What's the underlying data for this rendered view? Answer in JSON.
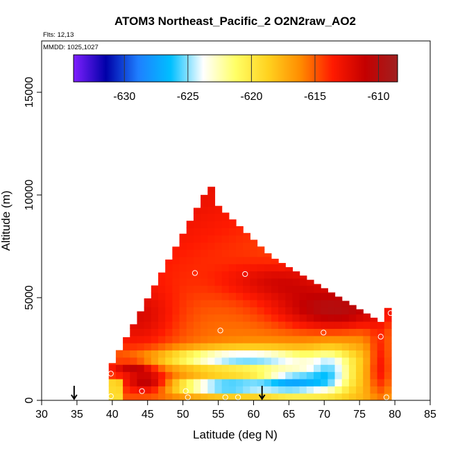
{
  "chart_data": {
    "type": "heatmap",
    "title": "ATOM3 Northeast_Pacific_2 O2N2raw_AO2",
    "flights_label": "Flts: 12,13",
    "dates_label": "MMDD: 1025,1027",
    "xlabel": "Latitude (deg N)",
    "ylabel": "Altitude (m)",
    "xlim": [
      30,
      85
    ],
    "ylim": [
      0,
      17500
    ],
    "x_ticks": [
      "30",
      "35",
      "40",
      "45",
      "50",
      "55",
      "60",
      "65",
      "70",
      "75",
      "80",
      "85"
    ],
    "x_tick_values": [
      30,
      35,
      40,
      45,
      50,
      55,
      60,
      65,
      70,
      75,
      80,
      85
    ],
    "y_ticks": [
      "0",
      "5000",
      "10000",
      "15000"
    ],
    "y_tick_values": [
      0,
      5000,
      10000,
      15000
    ],
    "colorbar": {
      "range": [
        -634,
        -608.5
      ],
      "tick_labels": [
        "-630",
        "-625",
        "-620",
        "-615",
        "-610"
      ],
      "tick_values": [
        -630,
        -625,
        -620,
        -615,
        -610
      ],
      "colors": [
        "#7f1fff",
        "#0000a8",
        "#1e7fff",
        "#00bfff",
        "#ffffff",
        "#ffff66",
        "#ffd21f",
        "#ff8c00",
        "#ff1a00",
        "#c40000",
        "#a02020"
      ]
    },
    "arrow_latitudes": [
      34.6,
      61.2
    ],
    "sample_points": [
      {
        "lat": 39.8,
        "alt": 1300
      },
      {
        "lat": 39.8,
        "alt": 200
      },
      {
        "lat": 44.2,
        "alt": 450
      },
      {
        "lat": 50.4,
        "alt": 450
      },
      {
        "lat": 50.7,
        "alt": 150
      },
      {
        "lat": 51.7,
        "alt": 6200
      },
      {
        "lat": 55.3,
        "alt": 3400
      },
      {
        "lat": 56.0,
        "alt": 150
      },
      {
        "lat": 57.8,
        "alt": 150
      },
      {
        "lat": 58.8,
        "alt": 6150
      },
      {
        "lat": 69.9,
        "alt": 3300
      },
      {
        "lat": 78.0,
        "alt": 3100
      },
      {
        "lat": 78.8,
        "alt": 150
      },
      {
        "lat": 79.4,
        "alt": 4250
      }
    ]
  }
}
